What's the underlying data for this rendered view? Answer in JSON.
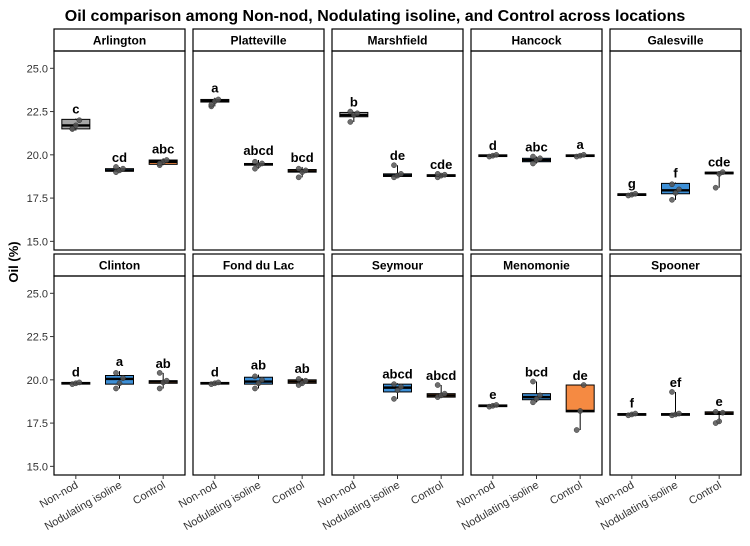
{
  "chart_data": {
    "type": "box",
    "title": "Oil comparison among Non-nod, Nodulating isoline, and Control across locations",
    "ylabel": "Oil (%)",
    "xlabel": "",
    "ylim": [
      14.5,
      26
    ],
    "yticks": [
      "15.0",
      "17.5",
      "20.0",
      "22.5",
      "25.0"
    ],
    "ytick_values": [
      15.0,
      17.5,
      20.0,
      22.5,
      25.0
    ],
    "categories": [
      "Non-nod",
      "Nodulating isoline",
      "Control"
    ],
    "colors": {
      "Non-nod": "#a6a6a6",
      "Nodulating isoline": "#3d8fd6",
      "Control": "#f58a42"
    },
    "grid": false,
    "legend": "none",
    "panels": [
      {
        "location": "Arlington",
        "groups": [
          {
            "treatment": "Non-nod",
            "letter": "c",
            "q1": 21.5,
            "median": 21.7,
            "q3": 22.05,
            "whisker_low": 21.4,
            "whisker_high": 22.1,
            "points": [
              21.5,
              21.7,
              22.0,
              21.5
            ]
          },
          {
            "treatment": "Nodulating isoline",
            "letter": "cd",
            "q1": 19.05,
            "median": 19.1,
            "q3": 19.2,
            "whisker_low": 19.0,
            "whisker_high": 19.3,
            "points": [
              19.0,
              19.1,
              19.2,
              19.3
            ]
          },
          {
            "treatment": "Control",
            "letter": "abc",
            "q1": 19.45,
            "median": 19.6,
            "q3": 19.7,
            "whisker_low": 19.4,
            "whisker_high": 19.8,
            "points": [
              19.4,
              19.6,
              19.7,
              19.5
            ]
          }
        ]
      },
      {
        "location": "Platteville",
        "groups": [
          {
            "treatment": "Non-nod",
            "letter": "a",
            "q1": 23.05,
            "median": 23.1,
            "q3": 23.2,
            "whisker_low": 22.8,
            "whisker_high": 23.3,
            "points": [
              22.8,
              23.1,
              23.2,
              22.9
            ]
          },
          {
            "treatment": "Nodulating isoline",
            "letter": "abcd",
            "q1": 19.4,
            "median": 19.45,
            "q3": 19.5,
            "whisker_low": 19.2,
            "whisker_high": 19.7,
            "points": [
              19.2,
              19.4,
              19.5,
              19.6
            ]
          },
          {
            "treatment": "Control",
            "letter": "bcd",
            "q1": 19.0,
            "median": 19.05,
            "q3": 19.15,
            "whisker_low": 18.7,
            "whisker_high": 19.3,
            "points": [
              18.7,
              19.0,
              19.1,
              19.2
            ]
          }
        ]
      },
      {
        "location": "Marshfield",
        "groups": [
          {
            "treatment": "Non-nod",
            "letter": "b",
            "q1": 22.2,
            "median": 22.3,
            "q3": 22.45,
            "whisker_low": 21.9,
            "whisker_high": 22.5,
            "points": [
              21.9,
              22.3,
              22.4,
              22.5
            ]
          },
          {
            "treatment": "Nodulating isoline",
            "letter": "de",
            "q1": 18.75,
            "median": 18.8,
            "q3": 18.9,
            "whisker_low": 18.7,
            "whisker_high": 19.4,
            "points": [
              18.7,
              18.8,
              18.9,
              19.4
            ]
          },
          {
            "treatment": "Control",
            "letter": "cde",
            "q1": 18.75,
            "median": 18.8,
            "q3": 18.85,
            "whisker_low": 18.7,
            "whisker_high": 18.9,
            "points": [
              18.7,
              18.8,
              18.85,
              18.9
            ]
          }
        ]
      },
      {
        "location": "Hancock",
        "groups": [
          {
            "treatment": "Non-nod",
            "letter": "d",
            "q1": 19.9,
            "median": 19.95,
            "q3": 20.0,
            "whisker_low": 19.85,
            "whisker_high": 20.0,
            "points": [
              19.9,
              19.95,
              20.0
            ]
          },
          {
            "treatment": "Nodulating isoline",
            "letter": "abc",
            "q1": 19.6,
            "median": 19.7,
            "q3": 19.8,
            "whisker_low": 19.5,
            "whisker_high": 19.9,
            "points": [
              19.5,
              19.7,
              19.8,
              19.9
            ]
          },
          {
            "treatment": "Control",
            "letter": "a",
            "q1": 19.9,
            "median": 19.95,
            "q3": 20.0,
            "whisker_low": 19.85,
            "whisker_high": 20.05,
            "points": [
              19.9,
              19.95,
              20.0
            ]
          }
        ]
      },
      {
        "location": "Galesville",
        "groups": [
          {
            "treatment": "Non-nod",
            "letter": "g",
            "q1": 17.65,
            "median": 17.7,
            "q3": 17.75,
            "whisker_low": 17.6,
            "whisker_high": 17.8,
            "points": [
              17.65,
              17.7,
              17.75
            ]
          },
          {
            "treatment": "Nodulating isoline",
            "letter": "f",
            "q1": 17.75,
            "median": 17.95,
            "q3": 18.35,
            "whisker_low": 17.4,
            "whisker_high": 18.4,
            "points": [
              17.4,
              17.8,
              18.0,
              18.3
            ]
          },
          {
            "treatment": "Control",
            "letter": "cde",
            "q1": 18.9,
            "median": 18.95,
            "q3": 19.0,
            "whisker_low": 18.1,
            "whisker_high": 19.05,
            "points": [
              18.1,
              18.9,
              19.0
            ]
          }
        ]
      },
      {
        "location": "Clinton",
        "groups": [
          {
            "treatment": "Non-nod",
            "letter": "d",
            "q1": 19.75,
            "median": 19.8,
            "q3": 19.85,
            "whisker_low": 19.7,
            "whisker_high": 19.9,
            "points": [
              19.75,
              19.8,
              19.85
            ]
          },
          {
            "treatment": "Nodulating isoline",
            "letter": "a",
            "q1": 19.75,
            "median": 20.05,
            "q3": 20.25,
            "whisker_low": 19.5,
            "whisker_high": 20.5,
            "points": [
              19.5,
              19.8,
              20.1,
              20.4
            ]
          },
          {
            "treatment": "Control",
            "letter": "ab",
            "q1": 19.8,
            "median": 19.9,
            "q3": 19.95,
            "whisker_low": 19.5,
            "whisker_high": 20.4,
            "points": [
              19.5,
              19.85,
              19.95,
              20.4
            ]
          }
        ]
      },
      {
        "location": "Fond du Lac",
        "groups": [
          {
            "treatment": "Non-nod",
            "letter": "d",
            "q1": 19.75,
            "median": 19.8,
            "q3": 19.85,
            "whisker_low": 19.7,
            "whisker_high": 19.9,
            "points": [
              19.75,
              19.8,
              19.85
            ]
          },
          {
            "treatment": "Nodulating isoline",
            "letter": "ab",
            "q1": 19.75,
            "median": 19.9,
            "q3": 20.15,
            "whisker_low": 19.5,
            "whisker_high": 20.3,
            "points": [
              19.5,
              19.8,
              20.0,
              20.2
            ]
          },
          {
            "treatment": "Control",
            "letter": "ab",
            "q1": 19.8,
            "median": 19.9,
            "q3": 20.0,
            "whisker_low": 19.7,
            "whisker_high": 20.1,
            "points": [
              19.7,
              19.8,
              19.95,
              20.05
            ]
          }
        ]
      },
      {
        "location": "Seymour",
        "groups": [
          {
            "treatment": "Non-nod",
            "letter": "",
            "q1": null,
            "median": null,
            "q3": null,
            "whisker_low": null,
            "whisker_high": null,
            "points": []
          },
          {
            "treatment": "Nodulating isoline",
            "letter": "abcd",
            "q1": 19.3,
            "median": 19.55,
            "q3": 19.75,
            "whisker_low": 18.9,
            "whisker_high": 19.8,
            "points": [
              18.9,
              19.4,
              19.6,
              19.75
            ]
          },
          {
            "treatment": "Control",
            "letter": "abcd",
            "q1": 19.0,
            "median": 19.1,
            "q3": 19.2,
            "whisker_low": 18.95,
            "whisker_high": 19.7,
            "points": [
              19.0,
              19.1,
              19.2,
              19.7
            ]
          }
        ]
      },
      {
        "location": "Menomonie",
        "groups": [
          {
            "treatment": "Non-nod",
            "letter": "e",
            "q1": 18.45,
            "median": 18.5,
            "q3": 18.55,
            "whisker_low": 18.4,
            "whisker_high": 18.6,
            "points": [
              18.45,
              18.5,
              18.55
            ]
          },
          {
            "treatment": "Nodulating isoline",
            "letter": "bcd",
            "q1": 18.85,
            "median": 19.0,
            "q3": 19.2,
            "whisker_low": 18.7,
            "whisker_high": 19.9,
            "points": [
              18.7,
              18.9,
              19.1,
              19.9
            ]
          },
          {
            "treatment": "Control",
            "letter": "de",
            "q1": 18.15,
            "median": 18.2,
            "q3": 19.7,
            "whisker_low": 17.1,
            "whisker_high": 19.7,
            "points": [
              17.1,
              18.2,
              19.7
            ]
          }
        ]
      },
      {
        "location": "Spooner",
        "groups": [
          {
            "treatment": "Non-nod",
            "letter": "f",
            "q1": 17.95,
            "median": 18.0,
            "q3": 18.05,
            "whisker_low": 17.9,
            "whisker_high": 18.1,
            "points": [
              17.95,
              18.0,
              18.05
            ]
          },
          {
            "treatment": "Nodulating isoline",
            "letter": "ef",
            "q1": 17.95,
            "median": 18.0,
            "q3": 18.05,
            "whisker_low": 17.9,
            "whisker_high": 19.3,
            "points": [
              17.95,
              18.0,
              18.05,
              19.3
            ]
          },
          {
            "treatment": "Control",
            "letter": "e",
            "q1": 18.0,
            "median": 18.05,
            "q3": 18.15,
            "whisker_low": 17.5,
            "whisker_high": 18.2,
            "points": [
              17.5,
              17.6,
              18.1,
              18.15
            ]
          }
        ]
      }
    ]
  }
}
